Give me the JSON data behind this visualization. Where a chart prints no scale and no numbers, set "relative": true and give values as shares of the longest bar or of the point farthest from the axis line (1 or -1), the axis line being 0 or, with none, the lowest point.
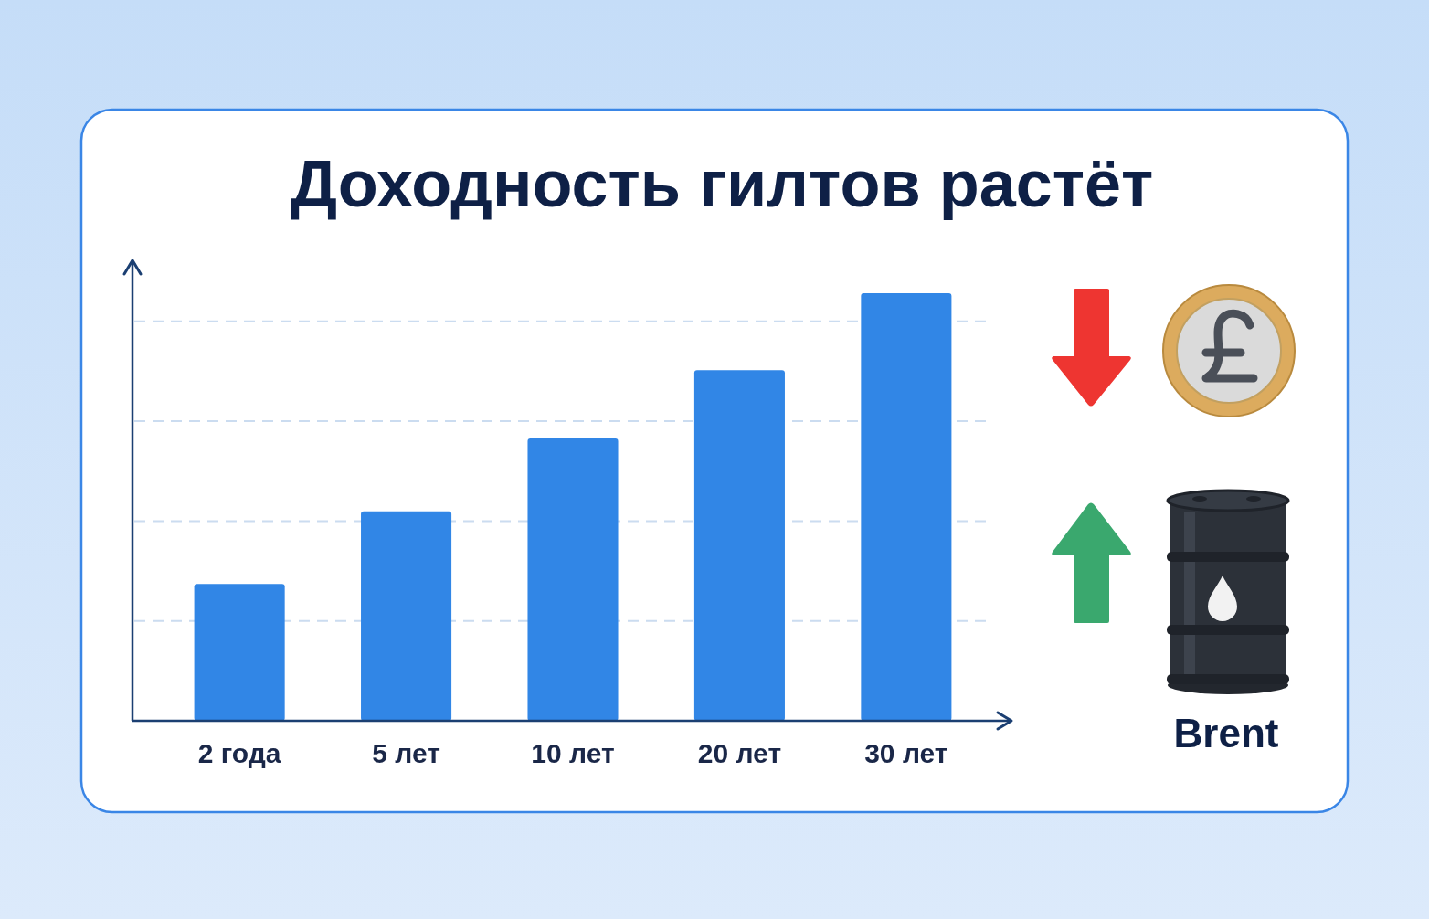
{
  "chart_data": {
    "type": "bar",
    "title": "Доходность гилтов растёт",
    "categories": [
      "2 года",
      "5 лет",
      "10 лет",
      "20 лет",
      "30 лет"
    ],
    "values": [
      0.32,
      0.49,
      0.66,
      0.82,
      1
    ],
    "color": "#3186e6",
    "relative": true,
    "grid": "y",
    "annotations": [
      "Brent"
    ]
  }
}
